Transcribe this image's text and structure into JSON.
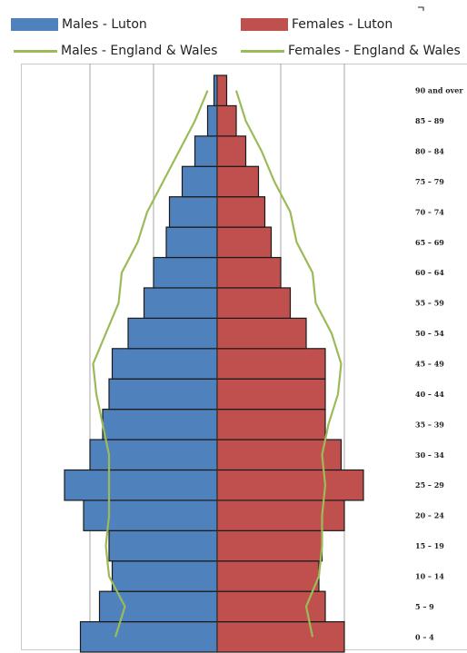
{
  "legend": {
    "males_luton": "Males - Luton",
    "females_luton": "Females - Luton",
    "males_ew": "Males - England & Wales",
    "females_ew": "Females - England & Wales"
  },
  "colors": {
    "male": "#4F81BD",
    "female": "#C0504D",
    "line": "#9BBB59",
    "grid": "#a6a6a6"
  },
  "chart_data": {
    "type": "bar",
    "orientation": "horizontal-population-pyramid",
    "categories": [
      "0 – 4",
      "5 – 9",
      "10 – 14",
      "15 – 19",
      "20 – 24",
      "25 – 29",
      "30 – 34",
      "35 – 39",
      "40 – 44",
      "45 – 49",
      "50 – 54",
      "55 – 59",
      "60 – 64",
      "65 – 69",
      "70 – 74",
      "75 – 79",
      "80 – 84",
      "85 – 89",
      "90 and over"
    ],
    "series": [
      {
        "name": "Males - Luton",
        "kind": "bar",
        "side": "left",
        "values": [
          4.3,
          3.7,
          3.3,
          3.4,
          4.2,
          4.8,
          4.0,
          3.6,
          3.4,
          3.3,
          2.8,
          2.3,
          2.0,
          1.6,
          1.5,
          1.1,
          0.7,
          0.3,
          0.1
        ]
      },
      {
        "name": "Females - Luton",
        "kind": "bar",
        "side": "right",
        "values": [
          4.0,
          3.4,
          3.2,
          3.3,
          4.0,
          4.6,
          3.9,
          3.4,
          3.4,
          3.4,
          2.8,
          2.3,
          2.0,
          1.7,
          1.5,
          1.3,
          0.9,
          0.6,
          0.3
        ]
      },
      {
        "name": "Males - England & Wales",
        "kind": "line",
        "side": "left",
        "values": [
          3.2,
          2.9,
          3.4,
          3.5,
          3.4,
          3.4,
          3.4,
          3.6,
          3.8,
          3.9,
          3.5,
          3.1,
          3.0,
          2.5,
          2.2,
          1.7,
          1.2,
          0.7,
          0.3
        ]
      },
      {
        "name": "Females - England & Wales",
        "kind": "line",
        "side": "right",
        "values": [
          3.0,
          2.8,
          3.2,
          3.3,
          3.3,
          3.4,
          3.3,
          3.5,
          3.8,
          3.9,
          3.6,
          3.1,
          3.0,
          2.5,
          2.3,
          1.8,
          1.4,
          0.9,
          0.6
        ]
      }
    ],
    "xlim": [
      -5,
      5
    ],
    "grid": true,
    "legend_position": "top"
  }
}
